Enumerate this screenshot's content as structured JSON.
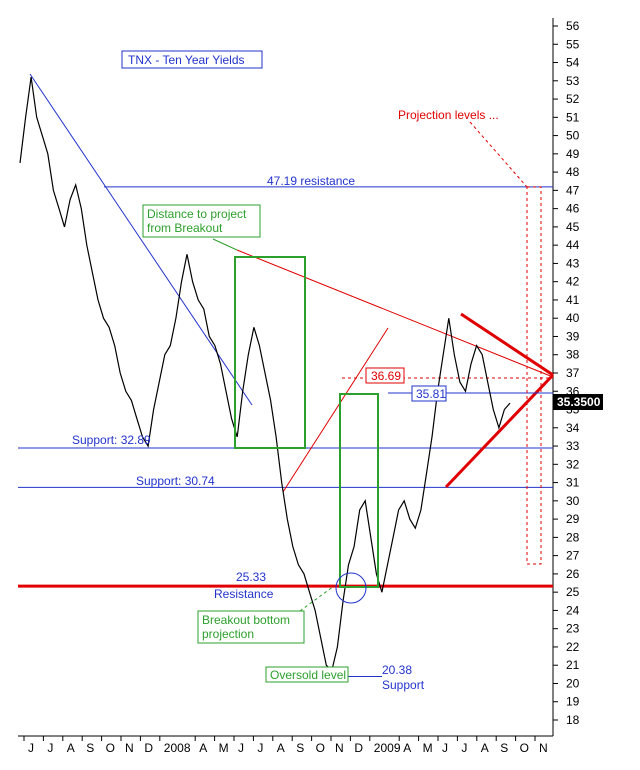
{
  "chart_data": {
    "type": "line",
    "title": "TNX - Ten Year Yields",
    "ylim": [
      18,
      56
    ],
    "y_ticks": [
      18,
      19,
      20,
      21,
      22,
      23,
      24,
      25,
      26,
      27,
      28,
      29,
      30,
      31,
      32,
      33,
      34,
      35,
      36,
      37,
      38,
      39,
      40,
      41,
      42,
      43,
      44,
      45,
      46,
      47,
      48,
      49,
      50,
      51,
      52,
      53,
      54,
      55,
      56
    ],
    "x_ticks": [
      "J",
      "J",
      "A",
      "S",
      "O",
      "N",
      "D",
      "2008",
      "A",
      "M",
      "J",
      "J",
      "A",
      "S",
      "O",
      "N",
      "D",
      "2009",
      "A",
      "M",
      "J",
      "J",
      "A",
      "S",
      "O",
      "N"
    ],
    "last_value": "35.3500",
    "series": [
      {
        "values": [
          48.5,
          51,
          53.2,
          51,
          50,
          49,
          47,
          46,
          45,
          46.5,
          47.3,
          46,
          44,
          42.5,
          41,
          40,
          39.5,
          38.5,
          37,
          36,
          35.5,
          34.5,
          33.5,
          33,
          35,
          36.5,
          38,
          38.5,
          40,
          42,
          43.5,
          42,
          41,
          40.5,
          39,
          38.5,
          37.5,
          36,
          34.5,
          33.5,
          36,
          38,
          39.5,
          38.5,
          37,
          35.5,
          33.5,
          31,
          29,
          27.5,
          26.5,
          26,
          25,
          24,
          22.5,
          21,
          20.7,
          22,
          24.5,
          26.5,
          27.5,
          29.5,
          30,
          28,
          26,
          25,
          26.5,
          28,
          29.5,
          30,
          29,
          28.5,
          29.5,
          31.5,
          33.5,
          36,
          38,
          40,
          38,
          36.5,
          36,
          37.5,
          38.5,
          38,
          36.5,
          35,
          34,
          35,
          35.35
        ]
      }
    ],
    "levels": [
      {
        "label": "47.19 resistance",
        "value": 47.19
      },
      {
        "label": "Support: 32.89",
        "value": 32.89
      },
      {
        "label": "Support: 30.74",
        "value": 30.74
      },
      {
        "label": "25.33",
        "sublabel": "Resistance",
        "value": 25.33
      },
      {
        "label": "20.38",
        "sublabel": "Support",
        "value": 20.38
      }
    ],
    "annotations": {
      "projection": "Projection levels ...",
      "distance": "Distance to project from Breakout",
      "breakout": "Breakout bottom projection",
      "oversold": "Oversold level",
      "pt_3669": "36.69",
      "pt_3581": "35.81"
    }
  }
}
